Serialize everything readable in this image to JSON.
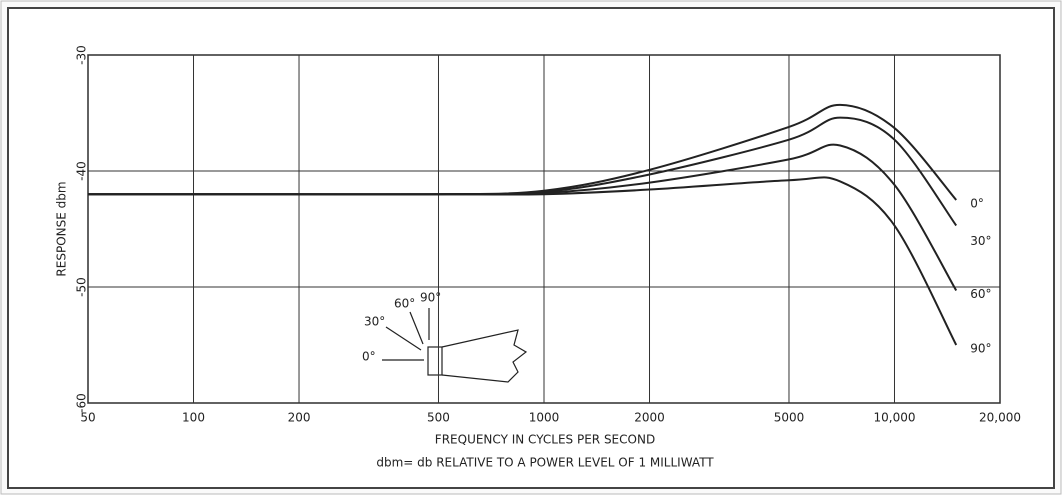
{
  "chart_data": {
    "type": "line",
    "y_label": "RESPONSE dbm",
    "x_label": "FREQUENCY IN CYCLES PER SECOND",
    "note": "dbm= db RELATIVE TO A POWER LEVEL OF 1 MILLIWATT",
    "log_x": true,
    "grid": true,
    "x": [
      50,
      100,
      200,
      500,
      1000,
      2000,
      5000,
      7000,
      10000,
      15000
    ],
    "series": [
      {
        "name": "0°",
        "color": "#222222",
        "values": [
          -42,
          -42,
          -42,
          -42,
          -41.7,
          -39.9,
          -36.2,
          -34.3,
          -36.3,
          -42.5
        ]
      },
      {
        "name": "30°",
        "color": "#222222",
        "values": [
          -42,
          -42,
          -42,
          -42,
          -41.8,
          -40.3,
          -37.3,
          -35.4,
          -37.3,
          -44.7
        ]
      },
      {
        "name": "60°",
        "color": "#222222",
        "values": [
          -42,
          -42,
          -42,
          -42,
          -41.9,
          -41,
          -39,
          -37.8,
          -41.2,
          -50.3
        ]
      },
      {
        "name": "90°",
        "color": "#222222",
        "values": [
          -42,
          -42,
          -42,
          -42,
          -42,
          -41.6,
          -40.8,
          -40.9,
          -44.7,
          -55
        ]
      }
    ],
    "xlim": [
      50,
      20000
    ],
    "xticks": [
      50,
      100,
      200,
      500,
      1000,
      2000,
      5000,
      {
        "value": 10000,
        "label": "10,000"
      },
      {
        "value": 20000,
        "label": "20,000"
      }
    ],
    "ylim": [
      -60,
      -30
    ],
    "yticks": [
      -60,
      -50,
      -40,
      -30
    ],
    "inset_labels": [
      "30°",
      "60°",
      "90°",
      "0°"
    ]
  }
}
